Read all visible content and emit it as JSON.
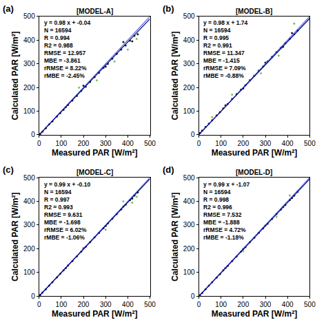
{
  "chart_data": [
    {
      "type": "scatter",
      "panel": "(a)",
      "title": "[MODEL-A]",
      "x_label": "Measured PAR [W/m²]",
      "y_label": "Calculated PAR [W/m²]",
      "stats": [
        "y = 0.98 x + -0.04",
        "N = 16594",
        "R = 0.994",
        "R2 = 0.988",
        "RMSE = 12.957",
        "MBE = -3.861",
        "rRMSE = 8.22%",
        "rMBE = -2.45%"
      ],
      "xlim": [
        0,
        500
      ],
      "ylim": [
        0,
        500
      ],
      "xticks": [
        0,
        100,
        200,
        300,
        400,
        500
      ],
      "yticks": [
        0,
        100,
        200,
        300,
        400,
        500
      ],
      "grid": false,
      "series": [
        {
          "color": "#1a1a1a",
          "marker": "dot",
          "x": [
            5,
            15,
            30,
            45,
            60,
            80,
            95,
            110,
            130,
            150,
            170,
            190,
            210,
            230,
            250,
            270,
            290,
            310,
            330,
            350,
            370,
            390,
            410,
            430,
            445,
            300,
            380,
            420,
            200,
            120
          ],
          "y": [
            4,
            14,
            28,
            44,
            57,
            78,
            92,
            106,
            126,
            145,
            165,
            186,
            203,
            224,
            244,
            262,
            283,
            300,
            322,
            342,
            360,
            378,
            398,
            418,
            425,
            288,
            392,
            395,
            208,
            117
          ]
        },
        {
          "color": "#7fbf5f",
          "marker": "dot",
          "x": [
            260,
            340,
            400,
            440,
            180
          ],
          "y": [
            230,
            310,
            360,
            405,
            200
          ]
        }
      ],
      "lines": [
        {
          "color": "#4a5fe0",
          "x": [
            0,
            500
          ],
          "y": [
            0,
            500
          ]
        },
        {
          "color": "#000080",
          "x": [
            0,
            500
          ],
          "y": [
            -0.04,
            489.96
          ]
        }
      ]
    },
    {
      "type": "scatter",
      "panel": "(b)",
      "title": "[MODEL-B]",
      "x_label": "Measured PAR [W/m²]",
      "y_label": "Calculated PAR [W/m²]",
      "stats": [
        "y = 0.98 x + 1.74",
        "N = 16594",
        "R = 0.995",
        "R2 = 0.991",
        "RMSE = 11.347",
        "MBE = -1.415",
        "rRMSE = 7.09%",
        "rMBE = -0.88%"
      ],
      "xlim": [
        0,
        500
      ],
      "ylim": [
        0,
        500
      ],
      "xticks": [
        0,
        100,
        200,
        300,
        400,
        500
      ],
      "yticks": [
        0,
        100,
        200,
        300,
        400,
        500
      ],
      "grid": false,
      "series": [
        {
          "color": "#1a1a1a",
          "marker": "dot",
          "x": [
            5,
            15,
            30,
            45,
            60,
            80,
            95,
            110,
            130,
            150,
            170,
            190,
            210,
            230,
            250,
            270,
            290,
            310,
            330,
            350,
            370,
            390,
            410,
            430,
            445,
            300,
            380,
            420,
            200,
            120
          ],
          "y": [
            8,
            18,
            33,
            47,
            62,
            82,
            96,
            112,
            131,
            152,
            172,
            191,
            210,
            231,
            250,
            271,
            289,
            310,
            330,
            349,
            368,
            387,
            406,
            425,
            440,
            305,
            372,
            430,
            196,
            125
          ]
        },
        {
          "color": "#7fbf5f",
          "marker": "dot",
          "x": [
            150,
            280,
            360,
            430,
            60
          ],
          "y": [
            170,
            260,
            335,
            470,
            75
          ]
        }
      ],
      "lines": [
        {
          "color": "#4a5fe0",
          "x": [
            0,
            500
          ],
          "y": [
            0,
            500
          ]
        },
        {
          "color": "#000080",
          "x": [
            0,
            500
          ],
          "y": [
            1.74,
            491.74
          ]
        }
      ]
    },
    {
      "type": "scatter",
      "panel": "(c)",
      "title": "[MODEL-C]",
      "x_label": "Measured PAR [W/m²]",
      "y_label": "Calculated PAR [W/m²]",
      "stats": [
        "y = 0.99 x + -0.10",
        "N = 16594",
        "R = 0.997",
        "R2 = 0.993",
        "RMSE = 9.631",
        "MBE = -1.698",
        "rRMSE = 6.02%",
        "rMBE = -1.06%"
      ],
      "xlim": [
        0,
        500
      ],
      "ylim": [
        0,
        500
      ],
      "xticks": [
        0,
        100,
        200,
        300,
        400,
        500
      ],
      "yticks": [
        0,
        100,
        200,
        300,
        400,
        500
      ],
      "grid": false,
      "series": [
        {
          "color": "#1a1a1a",
          "marker": "dot",
          "x": [
            5,
            15,
            30,
            45,
            60,
            80,
            95,
            110,
            130,
            150,
            170,
            190,
            210,
            230,
            250,
            270,
            290,
            310,
            330,
            350,
            370,
            390,
            410,
            430,
            445,
            300,
            380,
            420,
            200,
            120
          ],
          "y": [
            5,
            15,
            29,
            44,
            59,
            79,
            94,
            109,
            129,
            148,
            168,
            188,
            208,
            228,
            248,
            267,
            287,
            307,
            327,
            346,
            366,
            386,
            405,
            425,
            438,
            296,
            378,
            412,
            202,
            118
          ]
        },
        {
          "color": "#7fbf5f",
          "marker": "dot",
          "x": [
            300,
            380,
            440,
            420
          ],
          "y": [
            280,
            400,
            420,
            395
          ]
        }
      ],
      "lines": [
        {
          "color": "#4a5fe0",
          "x": [
            0,
            500
          ],
          "y": [
            0,
            500
          ]
        },
        {
          "color": "#000080",
          "x": [
            0,
            500
          ],
          "y": [
            -0.1,
            494.9
          ]
        }
      ]
    },
    {
      "type": "scatter",
      "panel": "(d)",
      "title": "[MODEL-D]",
      "x_label": "Measured PAR [W/m²]",
      "y_label": "Calculated PAR [W/m²]",
      "stats": [
        "y = 0.99 x + -1.07",
        "N = 16594",
        "R = 0.998",
        "R2 = 0.996",
        "RMSE = 7.532",
        "MBE = -1.888",
        "rRMSE = 4.72%",
        "rMBE = -1.18%"
      ],
      "xlim": [
        0,
        500
      ],
      "ylim": [
        0,
        500
      ],
      "xticks": [
        0,
        100,
        200,
        300,
        400,
        500
      ],
      "yticks": [
        0,
        100,
        200,
        300,
        400,
        500
      ],
      "grid": false,
      "series": [
        {
          "color": "#1a1a1a",
          "marker": "dot",
          "x": [
            5,
            15,
            30,
            45,
            60,
            80,
            95,
            110,
            130,
            150,
            170,
            190,
            210,
            230,
            250,
            270,
            290,
            310,
            330,
            350,
            370,
            390,
            410,
            430,
            445,
            300,
            380,
            420,
            200,
            120
          ],
          "y": [
            4,
            14,
            29,
            44,
            59,
            78,
            93,
            109,
            128,
            148,
            168,
            188,
            207,
            228,
            247,
            267,
            286,
            306,
            326,
            346,
            366,
            385,
            405,
            424,
            440,
            298,
            376,
            414,
            199,
            119
          ]
        },
        {
          "color": "#7fbf5f",
          "marker": "dot",
          "x": [
            350,
            410,
            200
          ],
          "y": [
            335,
            425,
            190
          ]
        }
      ],
      "lines": [
        {
          "color": "#4a5fe0",
          "x": [
            0,
            500
          ],
          "y": [
            0,
            500
          ]
        },
        {
          "color": "#000080",
          "x": [
            0,
            500
          ],
          "y": [
            -1.07,
            493.93
          ]
        }
      ]
    }
  ]
}
